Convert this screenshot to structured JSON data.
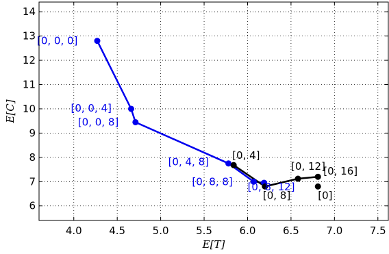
{
  "chart_data": {
    "type": "line",
    "xlabel": "E[T]",
    "ylabel": "E[C]",
    "xlim": [
      3.6,
      7.62
    ],
    "ylim": [
      5.4,
      14.4
    ],
    "xticks": [
      4.0,
      4.5,
      5.0,
      5.5,
      6.0,
      6.5,
      7.0,
      7.5
    ],
    "yticks": [
      6,
      7,
      8,
      9,
      10,
      11,
      12,
      13,
      14
    ],
    "grid": true,
    "series": [
      {
        "color": "#0000ee",
        "points": [
          {
            "x": 4.27,
            "y": 12.8,
            "label": "[0, 0, 0]"
          },
          {
            "x": 4.66,
            "y": 10.0,
            "label": "[0, 0, 4]"
          },
          {
            "x": 4.71,
            "y": 9.45,
            "label": "[0, 0, 8]"
          },
          {
            "x": 5.78,
            "y": 7.75,
            "label": "[0, 4, 8]"
          },
          {
            "x": 6.07,
            "y": 7.0,
            "label": "[0, 8, 8]"
          },
          {
            "x": 6.19,
            "y": 6.95,
            "label": "[0, 8, 12]"
          }
        ]
      },
      {
        "color": "#000000",
        "points": [
          {
            "x": 5.84,
            "y": 7.68,
            "label": "[0, 4]"
          },
          {
            "x": 6.2,
            "y": 6.8,
            "label": "[0, 8]"
          },
          {
            "x": 6.58,
            "y": 7.12,
            "label": "[0, 12]"
          },
          {
            "x": 6.81,
            "y": 7.2,
            "label": "[0, 16]"
          },
          {
            "x": 6.81,
            "y": 6.8,
            "label": "[0]",
            "detached": true
          }
        ]
      }
    ]
  }
}
